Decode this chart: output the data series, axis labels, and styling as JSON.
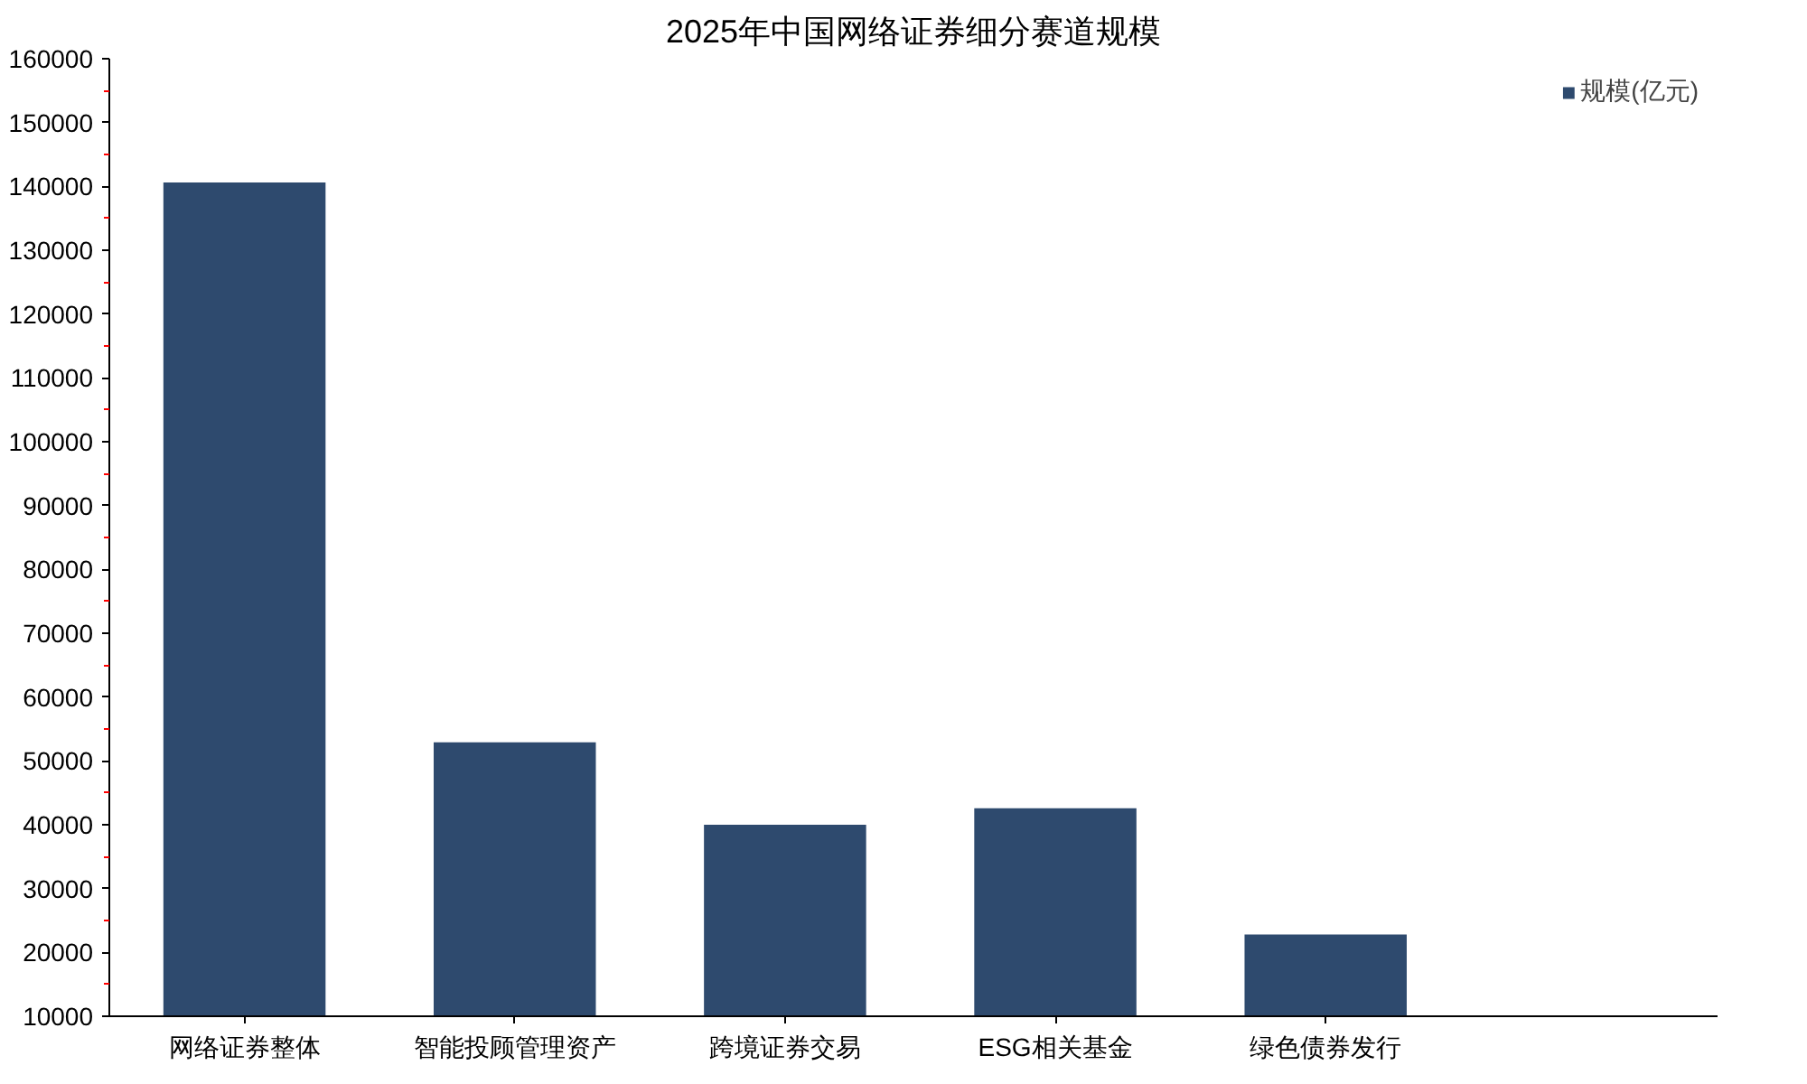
{
  "chart_data": {
    "type": "bar",
    "title": "2025年中国网络证券细分赛道规模",
    "categories": [
      "网络证券整体",
      "智能投顾管理资产",
      "跨境证券交易",
      "ESG相关基金",
      "绿色债券发行"
    ],
    "series": [
      {
        "name": "规模(亿元)",
        "color": "#2e4a6e",
        "values": [
          140600,
          52900,
          40000,
          42600,
          22800
        ]
      }
    ],
    "ylim": [
      10000,
      160000
    ],
    "yticks": [
      10000,
      20000,
      30000,
      40000,
      50000,
      60000,
      70000,
      80000,
      90000,
      100000,
      110000,
      120000,
      130000,
      140000,
      150000,
      160000
    ],
    "legend": "top right",
    "grid": false
  }
}
